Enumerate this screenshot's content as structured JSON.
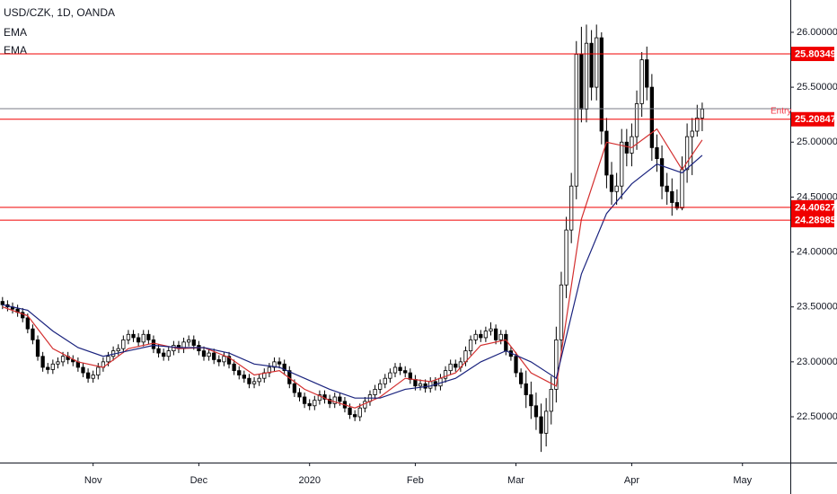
{
  "chart_data": {
    "type": "candlestick",
    "title": "USD/CZK, 1D, OANDA",
    "up_color": "#ffffff",
    "down_color": "#000000",
    "outline_color": "#000000",
    "grid": false,
    "xlim": [
      -0.5,
      156.5
    ],
    "ylim": [
      22.083,
      26.294
    ],
    "yticks": [
      {
        "value": 26,
        "label": "26.00000"
      },
      {
        "value": 25.5,
        "label": "25.50000"
      },
      {
        "value": 25,
        "label": "25.00000"
      },
      {
        "value": 24.5,
        "label": "24.50000"
      },
      {
        "value": 24,
        "label": "24.00000"
      },
      {
        "value": 23.5,
        "label": "23.50000"
      },
      {
        "value": 23,
        "label": "23.00000"
      },
      {
        "value": 22.5,
        "label": "22.50000"
      }
    ],
    "xticks": [
      {
        "value": 18,
        "label": "Nov"
      },
      {
        "value": 39,
        "label": "Dec"
      },
      {
        "value": 61,
        "label": "2020"
      },
      {
        "value": 82,
        "label": "Feb"
      },
      {
        "value": 102,
        "label": "Mar"
      },
      {
        "value": 125,
        "label": "Apr"
      },
      {
        "value": 147,
        "label": "May"
      }
    ],
    "ohlc": [
      [
        23.55,
        23.59,
        23.48,
        23.52
      ],
      [
        23.52,
        23.56,
        23.46,
        23.5
      ],
      [
        23.5,
        23.54,
        23.44,
        23.48
      ],
      [
        23.48,
        23.52,
        23.41,
        23.45
      ],
      [
        23.45,
        23.49,
        23.36,
        23.4
      ],
      [
        23.4,
        23.44,
        23.26,
        23.3
      ],
      [
        23.3,
        23.34,
        23.16,
        23.2
      ],
      [
        23.2,
        23.24,
        23.01,
        23.05
      ],
      [
        23.05,
        23.09,
        22.91,
        22.95
      ],
      [
        22.95,
        22.99,
        22.89,
        22.93
      ],
      [
        22.93,
        23.02,
        22.89,
        22.98
      ],
      [
        22.98,
        23.04,
        22.94,
        23.0
      ],
      [
        23.0,
        23.09,
        22.96,
        23.05
      ],
      [
        23.05,
        23.09,
        22.98,
        23.02
      ],
      [
        23.02,
        23.06,
        22.96,
        23.0
      ],
      [
        23.0,
        23.04,
        22.91,
        22.95
      ],
      [
        22.95,
        22.99,
        22.86,
        22.9
      ],
      [
        22.9,
        22.94,
        22.81,
        22.85
      ],
      [
        22.85,
        22.92,
        22.81,
        22.88
      ],
      [
        22.88,
        22.99,
        22.84,
        22.95
      ],
      [
        22.95,
        23.04,
        22.91,
        23.0
      ],
      [
        23.0,
        23.09,
        22.96,
        23.05
      ],
      [
        23.05,
        23.14,
        23.01,
        23.1
      ],
      [
        23.1,
        23.16,
        23.06,
        23.12
      ],
      [
        23.12,
        23.24,
        23.08,
        23.2
      ],
      [
        23.2,
        23.29,
        23.16,
        23.25
      ],
      [
        23.25,
        23.29,
        23.18,
        23.22
      ],
      [
        23.22,
        23.26,
        23.14,
        23.18
      ],
      [
        23.18,
        23.29,
        23.14,
        23.25
      ],
      [
        23.25,
        23.29,
        23.16,
        23.2
      ],
      [
        23.2,
        23.24,
        23.08,
        23.12
      ],
      [
        23.12,
        23.16,
        23.04,
        23.08
      ],
      [
        23.08,
        23.12,
        23.01,
        23.05
      ],
      [
        23.05,
        23.14,
        23.01,
        23.1
      ],
      [
        23.1,
        23.19,
        23.06,
        23.15
      ],
      [
        23.15,
        23.19,
        23.08,
        23.12
      ],
      [
        23.12,
        23.22,
        23.08,
        23.18
      ],
      [
        23.18,
        23.24,
        23.14,
        23.2
      ],
      [
        23.2,
        23.24,
        23.11,
        23.15
      ],
      [
        23.15,
        23.19,
        23.06,
        23.1
      ],
      [
        23.1,
        23.14,
        23.01,
        23.05
      ],
      [
        23.05,
        23.12,
        23.01,
        23.08
      ],
      [
        23.08,
        23.12,
        22.98,
        23.02
      ],
      [
        23.02,
        23.06,
        22.96,
        23.0
      ],
      [
        23.0,
        23.09,
        22.96,
        23.05
      ],
      [
        23.05,
        23.09,
        22.94,
        22.98
      ],
      [
        22.98,
        23.02,
        22.88,
        22.92
      ],
      [
        22.92,
        22.96,
        22.84,
        22.88
      ],
      [
        22.88,
        22.92,
        22.81,
        22.85
      ],
      [
        22.85,
        22.89,
        22.76,
        22.8
      ],
      [
        22.8,
        22.86,
        22.76,
        22.82
      ],
      [
        22.82,
        22.89,
        22.78,
        22.85
      ],
      [
        22.85,
        22.94,
        22.81,
        22.9
      ],
      [
        22.9,
        22.99,
        22.86,
        22.95
      ],
      [
        22.95,
        23.04,
        22.91,
        23.0
      ],
      [
        23.0,
        23.04,
        22.94,
        22.98
      ],
      [
        22.98,
        23.02,
        22.88,
        22.92
      ],
      [
        22.92,
        22.96,
        22.76,
        22.8
      ],
      [
        22.8,
        22.84,
        22.68,
        22.72
      ],
      [
        22.72,
        22.76,
        22.64,
        22.68
      ],
      [
        22.68,
        22.72,
        22.58,
        22.62
      ],
      [
        22.62,
        22.66,
        22.56,
        22.6
      ],
      [
        22.6,
        22.69,
        22.56,
        22.65
      ],
      [
        22.65,
        22.74,
        22.61,
        22.7
      ],
      [
        22.7,
        22.74,
        22.62,
        22.66
      ],
      [
        22.66,
        22.7,
        22.58,
        22.62
      ],
      [
        22.62,
        22.72,
        22.58,
        22.68
      ],
      [
        22.68,
        22.72,
        22.6,
        22.64
      ],
      [
        22.64,
        22.68,
        22.54,
        22.58
      ],
      [
        22.58,
        22.62,
        22.48,
        22.52
      ],
      [
        22.52,
        22.56,
        22.46,
        22.5
      ],
      [
        22.5,
        22.62,
        22.46,
        22.58
      ],
      [
        22.58,
        22.68,
        22.54,
        22.64
      ],
      [
        22.64,
        22.74,
        22.6,
        22.7
      ],
      [
        22.7,
        22.79,
        22.66,
        22.75
      ],
      [
        22.75,
        22.84,
        22.71,
        22.8
      ],
      [
        22.8,
        22.89,
        22.76,
        22.85
      ],
      [
        22.85,
        22.94,
        22.81,
        22.9
      ],
      [
        22.9,
        22.99,
        22.86,
        22.95
      ],
      [
        22.95,
        22.99,
        22.88,
        22.92
      ],
      [
        22.92,
        22.96,
        22.86,
        22.9
      ],
      [
        22.9,
        22.94,
        22.8,
        22.84
      ],
      [
        22.84,
        22.88,
        22.74,
        22.78
      ],
      [
        22.78,
        22.84,
        22.74,
        22.8
      ],
      [
        22.8,
        22.84,
        22.72,
        22.76
      ],
      [
        22.76,
        22.86,
        22.72,
        22.82
      ],
      [
        22.82,
        22.86,
        22.74,
        22.78
      ],
      [
        22.78,
        22.89,
        22.74,
        22.85
      ],
      [
        22.85,
        22.96,
        22.81,
        22.92
      ],
      [
        22.92,
        23.02,
        22.88,
        22.98
      ],
      [
        22.98,
        23.02,
        22.91,
        22.95
      ],
      [
        22.95,
        23.04,
        22.91,
        23.0
      ],
      [
        23.0,
        23.14,
        22.96,
        23.1
      ],
      [
        23.1,
        23.24,
        23.06,
        23.2
      ],
      [
        23.2,
        23.29,
        23.16,
        23.25
      ],
      [
        23.25,
        23.29,
        23.18,
        23.22
      ],
      [
        23.22,
        23.32,
        23.18,
        23.28
      ],
      [
        23.28,
        23.36,
        23.24,
        23.3
      ],
      [
        23.3,
        23.34,
        23.16,
        23.2
      ],
      [
        23.2,
        23.29,
        23.16,
        23.25
      ],
      [
        23.25,
        23.29,
        23.06,
        23.1
      ],
      [
        23.1,
        23.14,
        23.01,
        23.05
      ],
      [
        23.05,
        23.09,
        22.86,
        22.9
      ],
      [
        22.9,
        22.94,
        22.76,
        22.8
      ],
      [
        22.8,
        22.92,
        22.58,
        22.7
      ],
      [
        22.7,
        22.82,
        22.48,
        22.6
      ],
      [
        22.6,
        22.72,
        22.38,
        22.5
      ],
      [
        22.5,
        22.62,
        22.18,
        22.35
      ],
      [
        22.35,
        22.67,
        22.23,
        22.55
      ],
      [
        22.55,
        22.87,
        22.43,
        22.75
      ],
      [
        22.75,
        23.32,
        22.63,
        23.2
      ],
      [
        23.2,
        23.82,
        23.08,
        23.7
      ],
      [
        23.7,
        24.32,
        23.58,
        24.2
      ],
      [
        24.2,
        24.72,
        24.08,
        24.6
      ],
      [
        24.6,
        25.92,
        24.48,
        25.8
      ],
      [
        25.8,
        26.05,
        25.18,
        25.3
      ],
      [
        25.3,
        26.07,
        25.18,
        25.9
      ],
      [
        25.9,
        26.02,
        25.38,
        25.5
      ],
      [
        25.5,
        26.07,
        25.38,
        25.95
      ],
      [
        25.95,
        26.0,
        24.98,
        25.1
      ],
      [
        25.1,
        25.22,
        24.58,
        24.7
      ],
      [
        24.7,
        24.82,
        24.43,
        24.55
      ],
      [
        24.55,
        24.72,
        24.43,
        24.6
      ],
      [
        24.6,
        25.12,
        24.48,
        25.0
      ],
      [
        25.0,
        25.12,
        24.78,
        24.9
      ],
      [
        24.9,
        25.17,
        24.78,
        25.05
      ],
      [
        25.05,
        25.47,
        24.93,
        25.35
      ],
      [
        25.35,
        25.82,
        25.23,
        25.75
      ],
      [
        25.75,
        25.87,
        25.38,
        25.5
      ],
      [
        25.5,
        25.62,
        24.83,
        24.95
      ],
      [
        24.95,
        25.07,
        24.73,
        24.85
      ],
      [
        24.85,
        24.97,
        24.48,
        24.6
      ],
      [
        24.6,
        24.72,
        24.43,
        24.55
      ],
      [
        24.55,
        24.67,
        24.33,
        24.45
      ],
      [
        24.45,
        24.57,
        24.38,
        24.4
      ],
      [
        24.4,
        24.87,
        24.38,
        24.75
      ],
      [
        24.75,
        25.17,
        24.63,
        25.05
      ],
      [
        25.05,
        25.22,
        24.7,
        25.1
      ],
      [
        25.1,
        25.34,
        25.05,
        25.22
      ],
      [
        25.22,
        25.36,
        25.1,
        25.3
      ]
    ],
    "series": [
      {
        "name": "EMA",
        "color": "#d32f2f",
        "x": [
          0,
          5,
          10,
          15,
          20,
          25,
          30,
          35,
          40,
          45,
          50,
          55,
          60,
          65,
          70,
          75,
          80,
          85,
          90,
          95,
          100,
          105,
          110,
          115,
          120,
          125,
          130,
          135,
          139
        ],
        "values": [
          23.5,
          23.42,
          23.12,
          23.0,
          22.95,
          23.12,
          23.17,
          23.12,
          23.13,
          23.04,
          22.88,
          22.92,
          22.75,
          22.65,
          22.58,
          22.68,
          22.85,
          22.82,
          22.9,
          23.15,
          23.2,
          22.9,
          22.78,
          24.3,
          25.0,
          24.95,
          25.12,
          24.75,
          25.02
        ]
      },
      {
        "name": "EMA",
        "color": "#1a237e",
        "x": [
          0,
          5,
          10,
          15,
          20,
          25,
          30,
          35,
          40,
          45,
          50,
          55,
          60,
          65,
          70,
          75,
          80,
          85,
          90,
          95,
          100,
          105,
          110,
          115,
          120,
          125,
          130,
          135,
          139
        ],
        "values": [
          23.52,
          23.47,
          23.28,
          23.13,
          23.05,
          23.1,
          23.15,
          23.13,
          23.13,
          23.08,
          22.98,
          22.95,
          22.85,
          22.75,
          22.67,
          22.67,
          22.75,
          22.78,
          22.85,
          23.0,
          23.1,
          23.0,
          22.85,
          23.8,
          24.35,
          24.62,
          24.8,
          24.72,
          24.88
        ]
      }
    ],
    "levels": [
      {
        "value": 25.80349,
        "color": "#f00000"
      },
      {
        "value": 25.20847,
        "color": "#f00000"
      },
      {
        "value": 24.40627,
        "color": "#f00000"
      },
      {
        "value": 24.28985,
        "color": "#f00000"
      }
    ],
    "entry": {
      "label": "Entry",
      "value": 25.305,
      "color": "#787b86",
      "label_color": "#f23645"
    }
  }
}
